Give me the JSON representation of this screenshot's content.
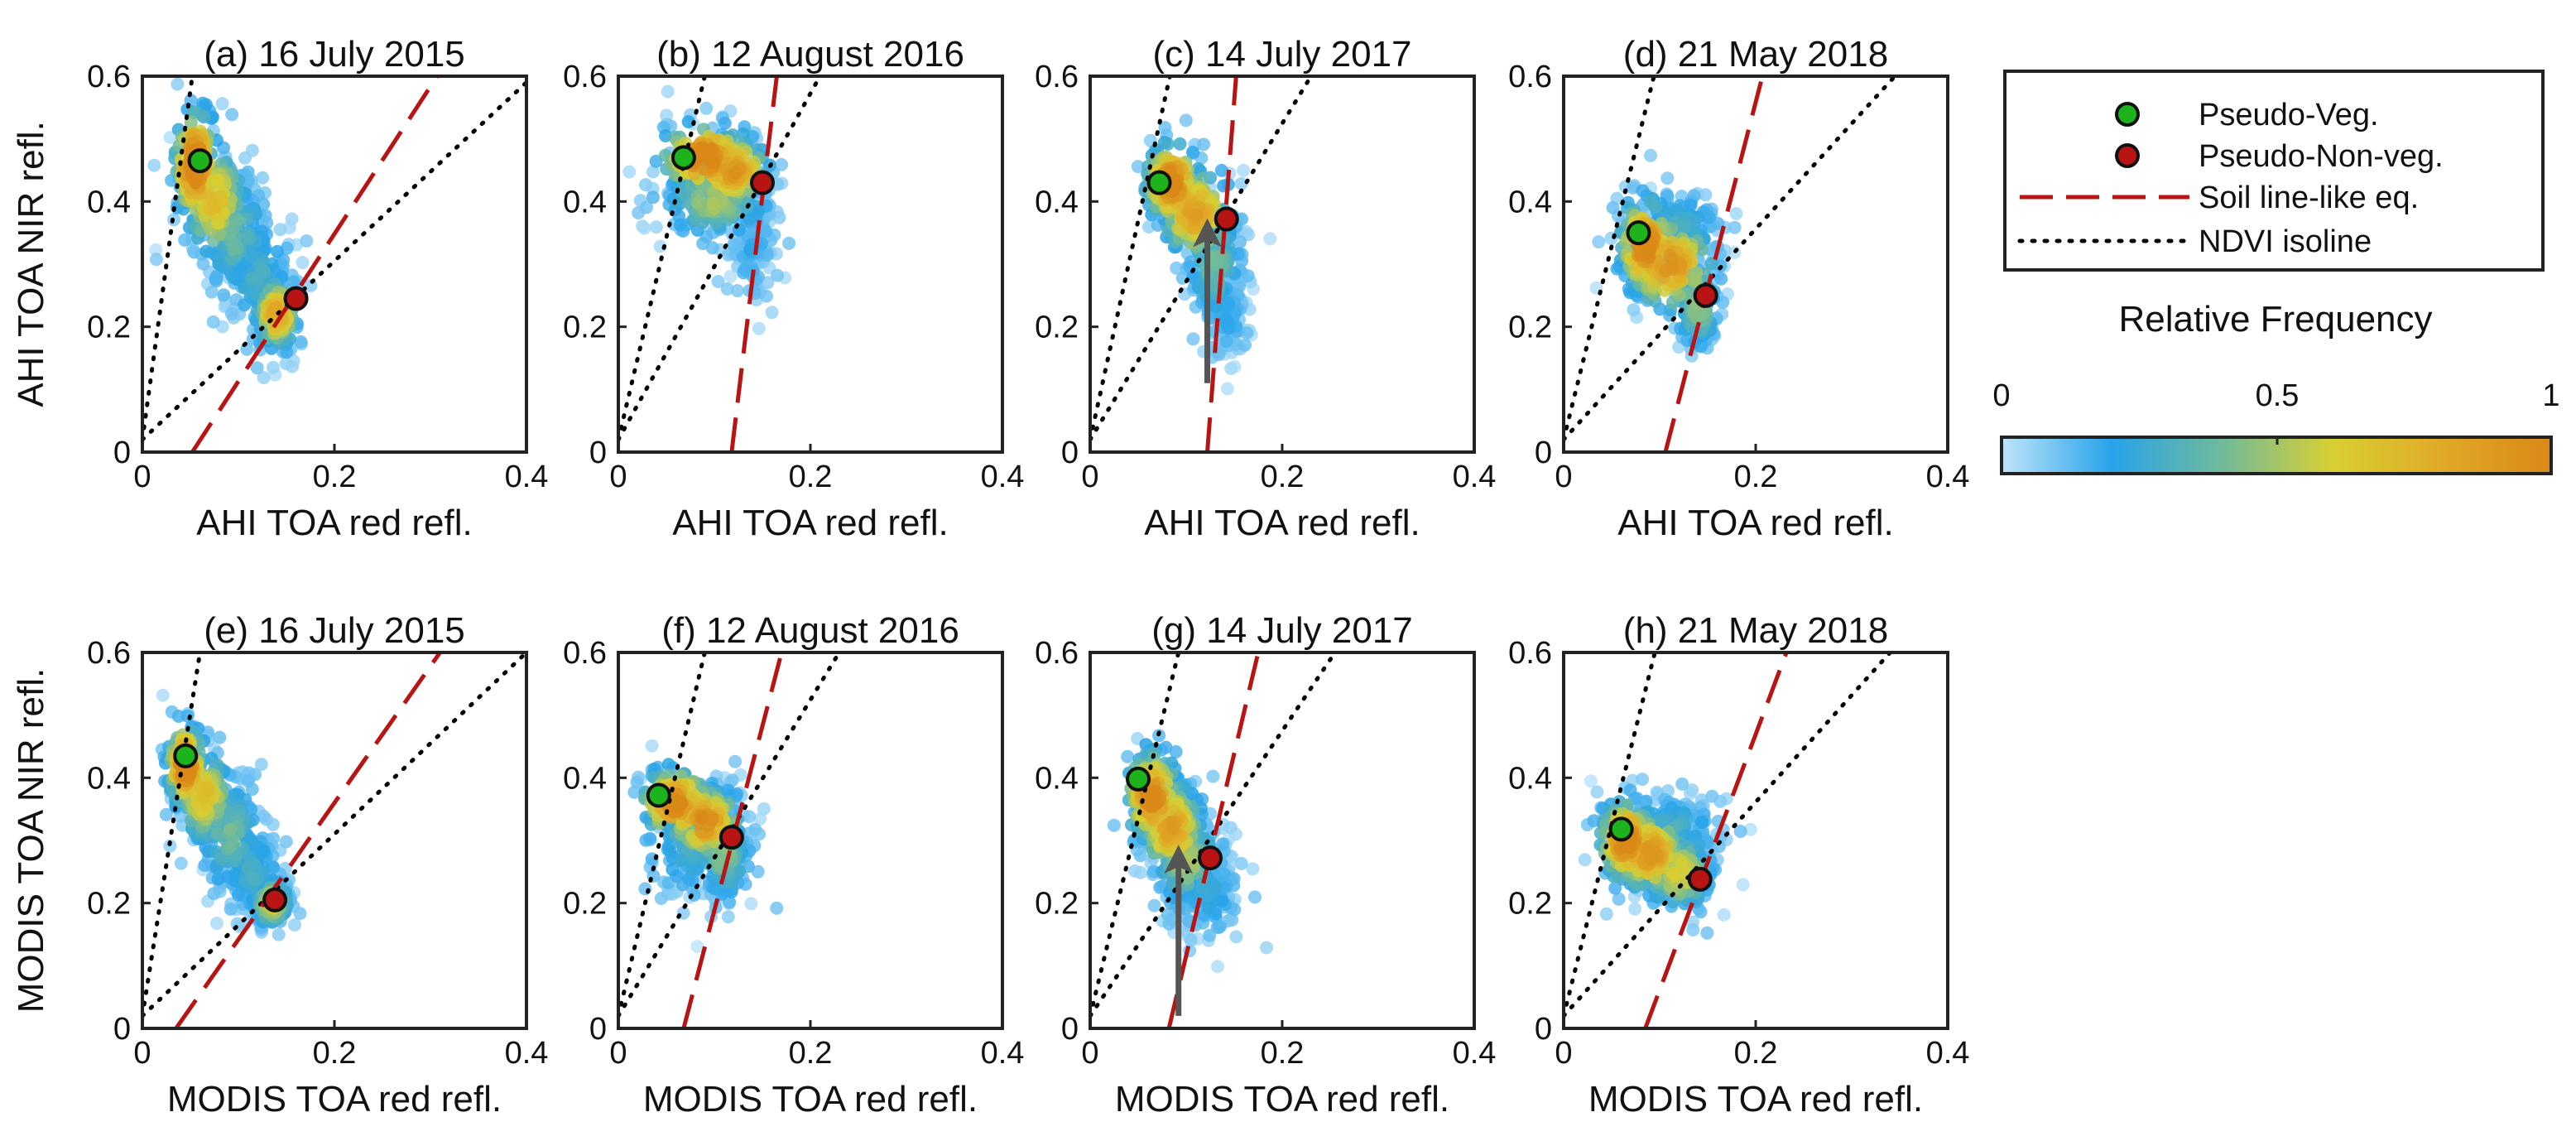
{
  "figure": {
    "colorbar": {
      "label": "Relative Frequency",
      "ticks": [
        "0",
        "0.5",
        "1"
      ],
      "colors": [
        "#bfe4fa",
        "#27a3ea",
        "#6fba9b",
        "#d7cf33",
        "#e0aa27",
        "#d98816"
      ]
    }
  },
  "legend": {
    "pseudo_veg": "Pseudo-Veg.",
    "pseudo_nonveg": "Pseudo-Non-veg.",
    "soil_line": "Soil line-like eq.",
    "ndvi_isoline": "NDVI isoline"
  },
  "colors": {
    "veg_marker": "#1db31d",
    "nonveg_marker": "#b81414",
    "soil_line": "#b81414",
    "isoline": "#000000",
    "arrow": "#555555"
  },
  "chart_data": [
    {
      "type": "scatter",
      "panel": "a",
      "title": "(a) 16 July 2015",
      "xlabel": "AHI TOA red refl.",
      "ylabel": "AHI TOA NIR refl.",
      "xlim": [
        0,
        0.4
      ],
      "ylim": [
        0,
        0.6
      ],
      "xticks": [
        "0",
        "0.2",
        "0.4"
      ],
      "yticks": [
        "0",
        "0.2",
        "0.4",
        "0.6"
      ],
      "veg": [
        0.06,
        0.465
      ],
      "nonveg": [
        0.16,
        0.245
      ],
      "soil_line": [
        [
          0.052,
          0
        ],
        [
          0.307,
          0.6
        ]
      ],
      "isolines": [
        [
          [
            0,
            0.02
          ],
          [
            0.052,
            0.6
          ]
        ],
        [
          [
            0,
            0.02
          ],
          [
            0.4,
            0.59
          ]
        ]
      ],
      "cloud": [
        [
          0.055,
          0.46,
          0.012,
          0.05,
          1.0
        ],
        [
          0.075,
          0.4,
          0.018,
          0.05,
          0.6
        ],
        [
          0.095,
          0.35,
          0.02,
          0.05,
          0.3
        ],
        [
          0.12,
          0.28,
          0.02,
          0.05,
          0.2
        ],
        [
          0.14,
          0.22,
          0.012,
          0.03,
          0.7
        ]
      ]
    },
    {
      "type": "scatter",
      "panel": "b",
      "title": "(b) 12 August 2016",
      "xlabel": "AHI TOA red refl.",
      "ylabel": "",
      "xlim": [
        0,
        0.4
      ],
      "ylim": [
        0,
        0.6
      ],
      "xticks": [
        "0",
        "0.2",
        "0.4"
      ],
      "yticks": [
        "0",
        "0.2",
        "0.4",
        "0.6"
      ],
      "veg": [
        0.068,
        0.47
      ],
      "nonveg": [
        0.15,
        0.43
      ],
      "soil_line": [
        [
          0.118,
          0
        ],
        [
          0.165,
          0.6
        ]
      ],
      "isolines": [
        [
          [
            0,
            0.02
          ],
          [
            0.09,
            0.6
          ]
        ],
        [
          [
            0,
            0.02
          ],
          [
            0.21,
            0.6
          ]
        ]
      ],
      "cloud": [
        [
          0.09,
          0.47,
          0.025,
          0.03,
          0.95
        ],
        [
          0.12,
          0.45,
          0.02,
          0.03,
          0.8
        ],
        [
          0.1,
          0.4,
          0.03,
          0.03,
          0.4
        ],
        [
          0.14,
          0.33,
          0.012,
          0.05,
          0.1
        ]
      ]
    },
    {
      "type": "scatter",
      "panel": "c",
      "title": "(c) 14 July 2017",
      "xlabel": "AHI TOA red refl.",
      "ylabel": "",
      "xlim": [
        0,
        0.4
      ],
      "ylim": [
        0,
        0.6
      ],
      "xticks": [
        "0",
        "0.2",
        "0.4"
      ],
      "yticks": [
        "0",
        "0.2",
        "0.4",
        "0.6"
      ],
      "veg": [
        0.072,
        0.43
      ],
      "nonveg": [
        0.142,
        0.372
      ],
      "soil_line": [
        [
          0.122,
          0
        ],
        [
          0.152,
          0.6
        ]
      ],
      "isolines": [
        [
          [
            0,
            0.02
          ],
          [
            0.083,
            0.6
          ]
        ],
        [
          [
            0,
            0.02
          ],
          [
            0.23,
            0.6
          ]
        ]
      ],
      "cloud": [
        [
          0.085,
          0.43,
          0.015,
          0.035,
          0.95
        ],
        [
          0.11,
          0.38,
          0.02,
          0.04,
          0.75
        ],
        [
          0.13,
          0.3,
          0.015,
          0.05,
          0.3
        ],
        [
          0.145,
          0.22,
          0.01,
          0.04,
          0.1
        ]
      ],
      "arrow": [
        [
          0.122,
          0.11
        ],
        [
          0.122,
          0.35
        ]
      ]
    },
    {
      "type": "scatter",
      "panel": "d",
      "title": "(d) 21 May 2018",
      "xlabel": "AHI TOA red refl.",
      "ylabel": "",
      "xlim": [
        0,
        0.4
      ],
      "ylim": [
        0,
        0.6
      ],
      "xticks": [
        "0",
        "0.2",
        "0.4"
      ],
      "yticks": [
        "0",
        "0.2",
        "0.4",
        "0.6"
      ],
      "veg": [
        0.078,
        0.35
      ],
      "nonveg": [
        0.148,
        0.25
      ],
      "soil_line": [
        [
          0.106,
          0
        ],
        [
          0.207,
          0.6
        ]
      ],
      "isolines": [
        [
          [
            0,
            0.02
          ],
          [
            0.094,
            0.6
          ]
        ],
        [
          [
            0,
            0.02
          ],
          [
            0.345,
            0.6
          ]
        ]
      ],
      "cloud": [
        [
          0.085,
          0.33,
          0.015,
          0.04,
          0.95
        ],
        [
          0.11,
          0.3,
          0.025,
          0.04,
          0.8
        ],
        [
          0.12,
          0.36,
          0.025,
          0.03,
          0.2
        ],
        [
          0.14,
          0.23,
          0.012,
          0.035,
          0.35
        ]
      ]
    },
    {
      "type": "scatter",
      "panel": "e",
      "title": "(e) 16 July 2015",
      "xlabel": "MODIS TOA red refl.",
      "ylabel": "MODIS TOA NIR refl.",
      "xlim": [
        0,
        0.4
      ],
      "ylim": [
        0,
        0.6
      ],
      "xticks": [
        "0",
        "0.2",
        "0.4"
      ],
      "yticks": [
        "0",
        "0.2",
        "0.4",
        "0.6"
      ],
      "veg": [
        0.045,
        0.435
      ],
      "nonveg": [
        0.138,
        0.205
      ],
      "soil_line": [
        [
          0.035,
          0
        ],
        [
          0.31,
          0.6
        ]
      ],
      "isolines": [
        [
          [
            0,
            0.02
          ],
          [
            0.06,
            0.6
          ]
        ],
        [
          [
            0,
            0.02
          ],
          [
            0.4,
            0.6
          ]
        ]
      ],
      "cloud": [
        [
          0.045,
          0.42,
          0.01,
          0.035,
          1.0
        ],
        [
          0.065,
          0.37,
          0.015,
          0.04,
          0.6
        ],
        [
          0.09,
          0.31,
          0.018,
          0.05,
          0.3
        ],
        [
          0.115,
          0.25,
          0.016,
          0.04,
          0.2
        ],
        [
          0.135,
          0.2,
          0.01,
          0.02,
          0.5
        ]
      ]
    },
    {
      "type": "scatter",
      "panel": "f",
      "title": "(f) 12 August 2016",
      "xlabel": "MODIS TOA red refl.",
      "ylabel": "",
      "xlim": [
        0,
        0.4
      ],
      "ylim": [
        0,
        0.6
      ],
      "xticks": [
        "0",
        "0.2",
        "0.4"
      ],
      "yticks": [
        "0",
        "0.2",
        "0.4",
        "0.6"
      ],
      "veg": [
        0.042,
        0.372
      ],
      "nonveg": [
        0.118,
        0.305
      ],
      "soil_line": [
        [
          0.068,
          0
        ],
        [
          0.17,
          0.6
        ]
      ],
      "isolines": [
        [
          [
            0,
            0.02
          ],
          [
            0.09,
            0.6
          ]
        ],
        [
          [
            0,
            0.02
          ],
          [
            0.23,
            0.6
          ]
        ]
      ],
      "cloud": [
        [
          0.06,
          0.36,
          0.02,
          0.03,
          0.9
        ],
        [
          0.09,
          0.33,
          0.02,
          0.03,
          0.85
        ],
        [
          0.11,
          0.28,
          0.015,
          0.04,
          0.35
        ],
        [
          0.08,
          0.3,
          0.03,
          0.05,
          0.2
        ]
      ]
    },
    {
      "type": "scatter",
      "panel": "g",
      "title": "(g) 14 July 2017",
      "xlabel": "MODIS TOA red refl.",
      "ylabel": "",
      "xlim": [
        0,
        0.4
      ],
      "ylim": [
        0,
        0.6
      ],
      "xticks": [
        "0",
        "0.2",
        "0.4"
      ],
      "yticks": [
        "0",
        "0.2",
        "0.4",
        "0.6"
      ],
      "veg": [
        0.05,
        0.398
      ],
      "nonveg": [
        0.125,
        0.272
      ],
      "soil_line": [
        [
          0.082,
          0
        ],
        [
          0.175,
          0.6
        ]
      ],
      "isolines": [
        [
          [
            0,
            0.02
          ],
          [
            0.092,
            0.6
          ]
        ],
        [
          [
            0,
            0.02
          ],
          [
            0.255,
            0.6
          ]
        ]
      ],
      "cloud": [
        [
          0.065,
          0.37,
          0.015,
          0.04,
          0.9
        ],
        [
          0.085,
          0.32,
          0.018,
          0.04,
          0.75
        ],
        [
          0.1,
          0.27,
          0.02,
          0.04,
          0.4
        ],
        [
          0.12,
          0.22,
          0.02,
          0.04,
          0.15
        ]
      ],
      "arrow": [
        [
          0.092,
          0.02
        ],
        [
          0.092,
          0.27
        ]
      ]
    },
    {
      "type": "scatter",
      "panel": "h",
      "title": "(h) 21 May 2018",
      "xlabel": "MODIS TOA red refl.",
      "ylabel": "",
      "xlim": [
        0,
        0.4
      ],
      "ylim": [
        0,
        0.6
      ],
      "xticks": [
        "0",
        "0.2",
        "0.4"
      ],
      "yticks": [
        "0",
        "0.2",
        "0.4",
        "0.6"
      ],
      "veg": [
        0.06,
        0.318
      ],
      "nonveg": [
        0.142,
        0.238
      ],
      "soil_line": [
        [
          0.085,
          0
        ],
        [
          0.232,
          0.6
        ]
      ],
      "isolines": [
        [
          [
            0,
            0.02
          ],
          [
            0.095,
            0.6
          ]
        ],
        [
          [
            0,
            0.02
          ],
          [
            0.34,
            0.6
          ]
        ]
      ],
      "cloud": [
        [
          0.065,
          0.3,
          0.015,
          0.035,
          0.95
        ],
        [
          0.09,
          0.28,
          0.02,
          0.035,
          0.8
        ],
        [
          0.12,
          0.25,
          0.02,
          0.035,
          0.5
        ],
        [
          0.11,
          0.32,
          0.03,
          0.03,
          0.2
        ]
      ]
    }
  ]
}
